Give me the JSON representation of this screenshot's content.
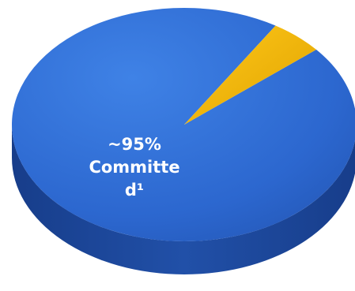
{
  "chart_data": {
    "type": "pie",
    "title": "",
    "slices": [
      {
        "label": "Committed",
        "value": 95,
        "color": "#2f6fd6"
      },
      {
        "label": "",
        "value": 5,
        "color": "#f2b705"
      }
    ],
    "annotation": {
      "lines": [
        "~95%",
        "Committe",
        "d¹"
      ]
    }
  }
}
